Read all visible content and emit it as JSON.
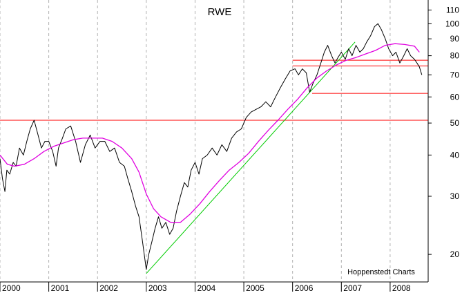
{
  "chart_data": {
    "type": "line",
    "title": "RWE",
    "credit": "Hoppenstedt Charts",
    "y_scale": "log",
    "ylim": [
      16.5,
      118
    ],
    "xlim": [
      2000.0,
      2008.78
    ],
    "y_ticks": [
      20,
      30,
      40,
      50,
      60,
      70,
      80,
      90,
      100,
      110
    ],
    "x_ticks": [
      "2000",
      "2001",
      "2002",
      "2003",
      "2004",
      "2005",
      "2006",
      "2007",
      "2008"
    ],
    "grid": "vertical dashed lines at year boundaries",
    "colors": {
      "price": "#000000",
      "moving_average": "#e000e0",
      "support_resistance": "#ff0000",
      "trendline": "#00cc00",
      "grid": "#b0b0b0"
    },
    "series": [
      {
        "key": "price",
        "x": [
          2000.0,
          2000.05,
          2000.1,
          2000.14,
          2000.2,
          2000.27,
          2000.33,
          2000.4,
          2000.48,
          2000.55,
          2000.62,
          2000.7,
          2000.78,
          2000.85,
          2000.92,
          2001.0,
          2001.08,
          2001.15,
          2001.2,
          2001.28,
          2001.35,
          2001.45,
          2001.55,
          2001.65,
          2001.75,
          2001.85,
          2001.95,
          2002.05,
          2002.15,
          2002.25,
          2002.35,
          2002.45,
          2002.55,
          2002.62,
          2002.7,
          2002.78,
          2002.85,
          2002.92,
          2003.0,
          2003.05,
          2003.12,
          2003.18,
          2003.25,
          2003.32,
          2003.4,
          2003.48,
          2003.55,
          2003.62,
          2003.7,
          2003.78,
          2003.85,
          2003.92,
          2004.0,
          2004.08,
          2004.15,
          2004.25,
          2004.35,
          2004.45,
          2004.55,
          2004.65,
          2004.75,
          2004.85,
          2004.95,
          2005.05,
          2005.15,
          2005.25,
          2005.35,
          2005.45,
          2005.55,
          2005.65,
          2005.75,
          2005.85,
          2005.95,
          2006.05,
          2006.12,
          2006.2,
          2006.28,
          2006.35,
          2006.42,
          2006.5,
          2006.58,
          2006.65,
          2006.72,
          2006.8,
          2006.87,
          2006.93,
          2007.0,
          2007.08,
          2007.15,
          2007.22,
          2007.3,
          2007.38,
          2007.45,
          2007.52,
          2007.6,
          2007.68,
          2007.75,
          2007.82,
          2007.9,
          2007.97,
          2008.05,
          2008.12,
          2008.2,
          2008.28,
          2008.35,
          2008.42,
          2008.5,
          2008.55,
          2008.6,
          2008.65
        ],
        "values": [
          39,
          34,
          31,
          36,
          35,
          38,
          37,
          42,
          40,
          44,
          48,
          51,
          46,
          42,
          44,
          44,
          41,
          37,
          42,
          45,
          48,
          49,
          44,
          38,
          43,
          46,
          42,
          44,
          44,
          41,
          42,
          38,
          37,
          34,
          31,
          28,
          26,
          22,
          18,
          20,
          22,
          24,
          26,
          24,
          25,
          23,
          24,
          27,
          30,
          33,
          32,
          36,
          38,
          35,
          39,
          40,
          42,
          40,
          43,
          41,
          45,
          47,
          48,
          52,
          54,
          55,
          56,
          58,
          56,
          60,
          64,
          68,
          72,
          73,
          70,
          73,
          71,
          62,
          66,
          70,
          76,
          82,
          86,
          80,
          76,
          79,
          82,
          78,
          84,
          80,
          86,
          82,
          84,
          88,
          92,
          98,
          100,
          96,
          90,
          84,
          80,
          82,
          76,
          80,
          84,
          80,
          78,
          76,
          74,
          70
        ]
      },
      {
        "key": "moving_average",
        "x": [
          2000.0,
          2000.15,
          2000.3,
          2000.5,
          2000.7,
          2000.9,
          2001.1,
          2001.3,
          2001.5,
          2001.7,
          2001.9,
          2002.1,
          2002.3,
          2002.5,
          2002.7,
          2002.85,
          2003.0,
          2003.15,
          2003.3,
          2003.5,
          2003.7,
          2003.9,
          2004.1,
          2004.3,
          2004.5,
          2004.7,
          2004.9,
          2005.1,
          2005.3,
          2005.5,
          2005.7,
          2005.9,
          2006.1,
          2006.3,
          2006.5,
          2006.7,
          2006.9,
          2007.1,
          2007.3,
          2007.5,
          2007.7,
          2007.9,
          2008.1,
          2008.3,
          2008.5,
          2008.6
        ],
        "values": [
          40,
          37.5,
          37,
          37.5,
          39,
          41,
          42.5,
          43.5,
          44.5,
          45,
          45,
          45,
          44,
          42,
          39,
          35.5,
          30.5,
          27.5,
          26,
          25,
          25,
          26.5,
          28.5,
          31,
          33.5,
          36,
          38,
          40.5,
          44,
          47.5,
          51,
          55,
          59,
          64,
          68.5,
          72,
          75,
          77.5,
          79,
          81,
          83,
          86,
          87,
          86.5,
          85.5,
          82
        ]
      }
    ],
    "horizontal_lines": [
      {
        "value": 77.5,
        "x_start": 2006.0,
        "x_end": 2008.78
      },
      {
        "value": 74.5,
        "x_start": 2006.0,
        "x_end": 2008.78
      },
      {
        "value": 61.5,
        "x_start": 2006.4,
        "x_end": 2008.78
      },
      {
        "value": 51,
        "x_start": 2000.0,
        "x_end": 2008.78
      }
    ],
    "trendlines": [
      {
        "x": [
          2003.0,
          2007.28
        ],
        "values": [
          17.5,
          88
        ]
      }
    ]
  }
}
